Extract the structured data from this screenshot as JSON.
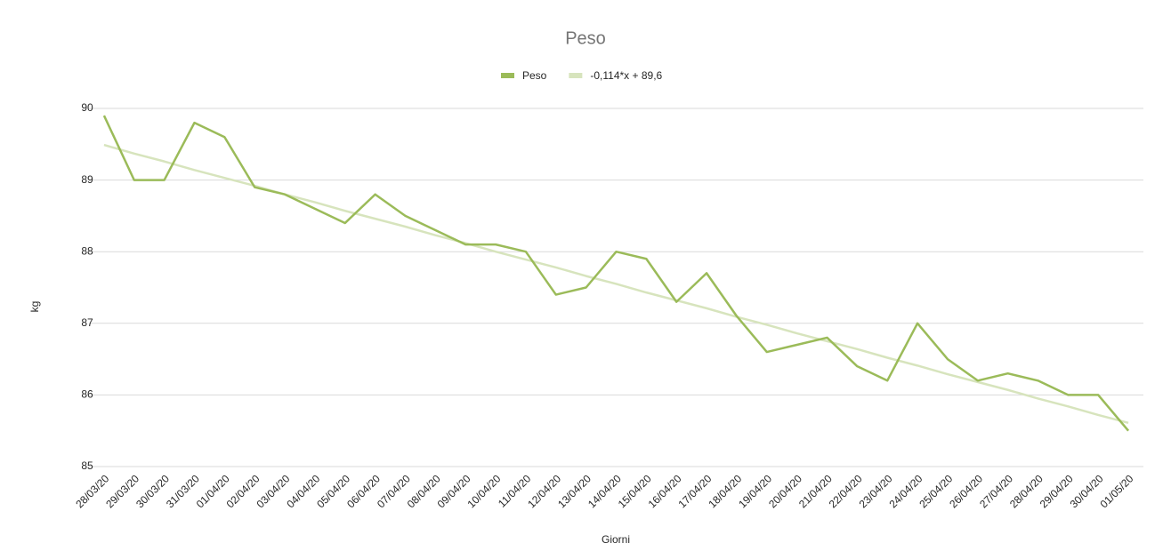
{
  "chart_data": {
    "type": "line",
    "title": "Peso",
    "x_label": "Giorni",
    "y_label": "kg",
    "categories": [
      "28/03/20",
      "29/03/20",
      "30/03/20",
      "31/03/20",
      "01/04/20",
      "02/04/20",
      "03/04/20",
      "04/04/20",
      "05/04/20",
      "06/04/20",
      "07/04/20",
      "08/04/20",
      "09/04/20",
      "10/04/20",
      "11/04/20",
      "12/04/20",
      "13/04/20",
      "14/04/20",
      "15/04/20",
      "16/04/20",
      "17/04/20",
      "18/04/20",
      "19/04/20",
      "20/04/20",
      "21/04/20",
      "22/04/20",
      "23/04/20",
      "24/04/20",
      "25/04/20",
      "26/04/20",
      "27/04/20",
      "28/04/20",
      "29/04/20",
      "30/04/20",
      "01/05/20"
    ],
    "series": [
      {
        "name": "Peso",
        "color": "#9bbb59",
        "width": 2.5,
        "values": [
          89.9,
          89.0,
          89.0,
          89.8,
          89.6,
          88.9,
          88.8,
          88.6,
          88.4,
          88.8,
          88.5,
          88.3,
          88.1,
          88.1,
          88.0,
          87.4,
          87.5,
          88.0,
          87.9,
          87.3,
          87.7,
          87.1,
          86.6,
          86.7,
          86.8,
          86.4,
          86.2,
          87.0,
          86.5,
          86.2,
          86.3,
          86.2,
          86.0,
          86.0,
          85.5
        ]
      },
      {
        "name": "-0,114*x + 89,6",
        "color": "#d7e4bd",
        "width": 2.5,
        "values": [
          89.49,
          89.37,
          89.26,
          89.14,
          89.03,
          88.92,
          88.8,
          88.69,
          88.57,
          88.46,
          88.35,
          88.23,
          88.12,
          88.0,
          87.89,
          87.78,
          87.66,
          87.55,
          87.43,
          87.32,
          87.21,
          87.09,
          86.98,
          86.86,
          86.75,
          86.64,
          86.52,
          86.41,
          86.29,
          86.18,
          86.07,
          85.95,
          85.84,
          85.72,
          85.61
        ]
      }
    ],
    "ylim": [
      85,
      90
    ],
    "yticks": [
      85,
      86,
      87,
      88,
      89,
      90
    ],
    "grid": true,
    "legend": "top"
  }
}
